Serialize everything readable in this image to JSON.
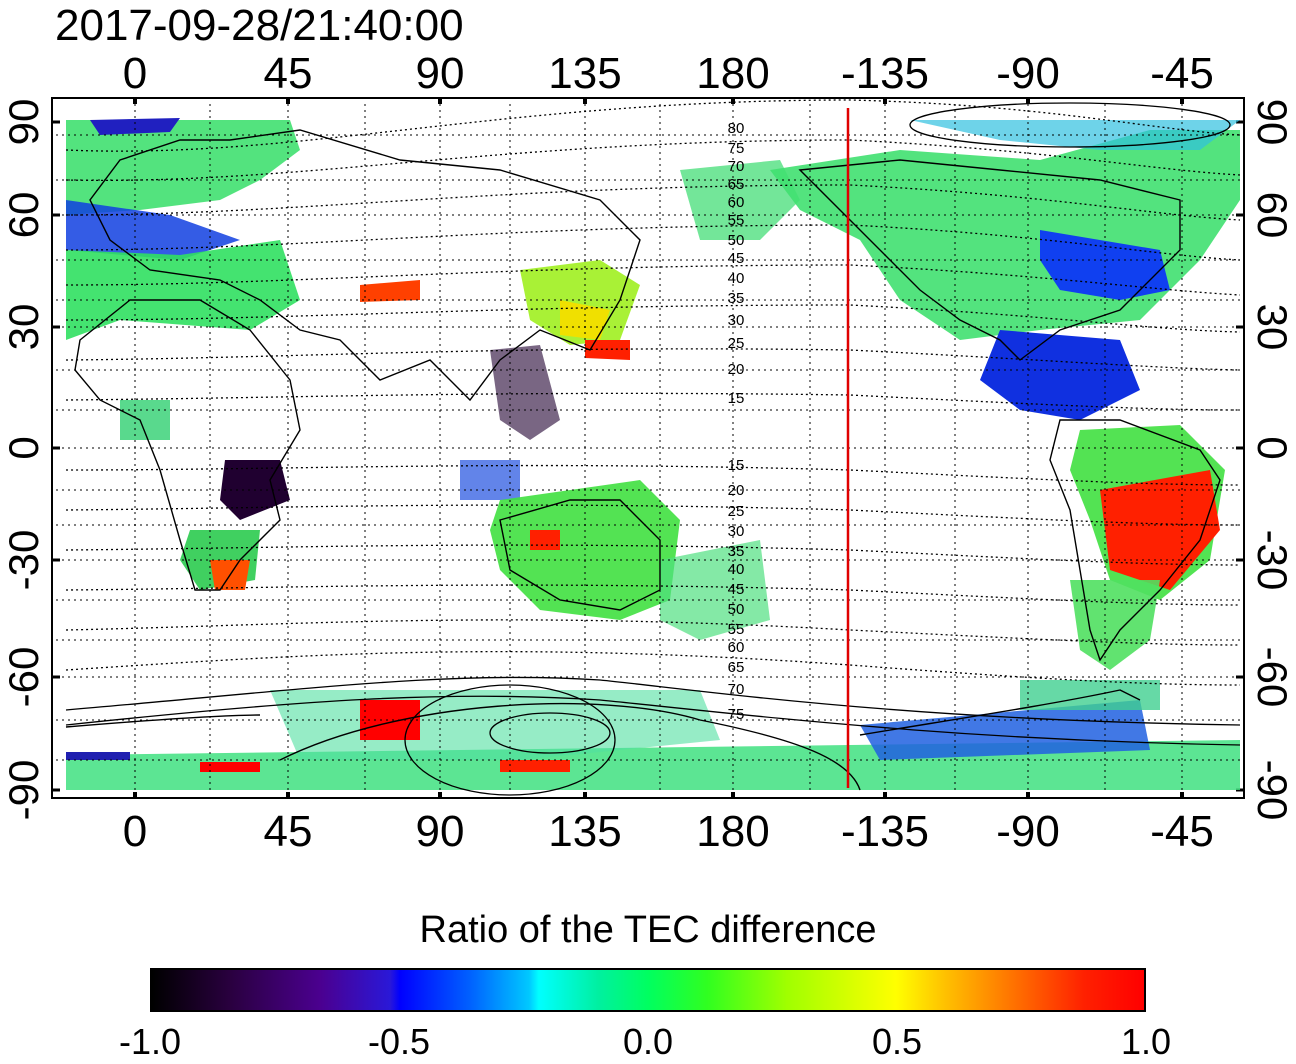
{
  "title": "2017-09-28/21:40:00",
  "top_lon_labels": [
    "0",
    "45",
    "90",
    "135",
    "180",
    "-135",
    "-90",
    "-45"
  ],
  "bottom_lon_labels": [
    "0",
    "45",
    "90",
    "135",
    "180",
    "-135",
    "-90",
    "-45"
  ],
  "left_lat_labels": [
    "90",
    "60",
    "30",
    "0",
    "-30",
    "-60",
    "-90"
  ],
  "right_lat_labels": [
    "90",
    "60",
    "30",
    "0",
    "-30",
    "-60",
    "-90"
  ],
  "contour_labels_north": [
    "80",
    "75",
    "70",
    "65",
    "60",
    "55",
    "50",
    "45",
    "40",
    "35",
    "30",
    "25",
    "20",
    "15"
  ],
  "contour_labels_south": [
    "15",
    "20",
    "25",
    "30",
    "35",
    "40",
    "45",
    "50",
    "55",
    "60",
    "65",
    "70",
    "75"
  ],
  "colorbar": {
    "title": "Ratio of the TEC difference",
    "ticks": [
      "-1.0",
      "-0.5",
      "0.0",
      "0.5",
      "1.0"
    ],
    "range": [
      -1.0,
      1.0
    ]
  },
  "colors": {
    "terminator_line": "#e00000",
    "positive": "#ff0000",
    "neutral": "#00ff40",
    "negative": "#0000ff"
  }
}
